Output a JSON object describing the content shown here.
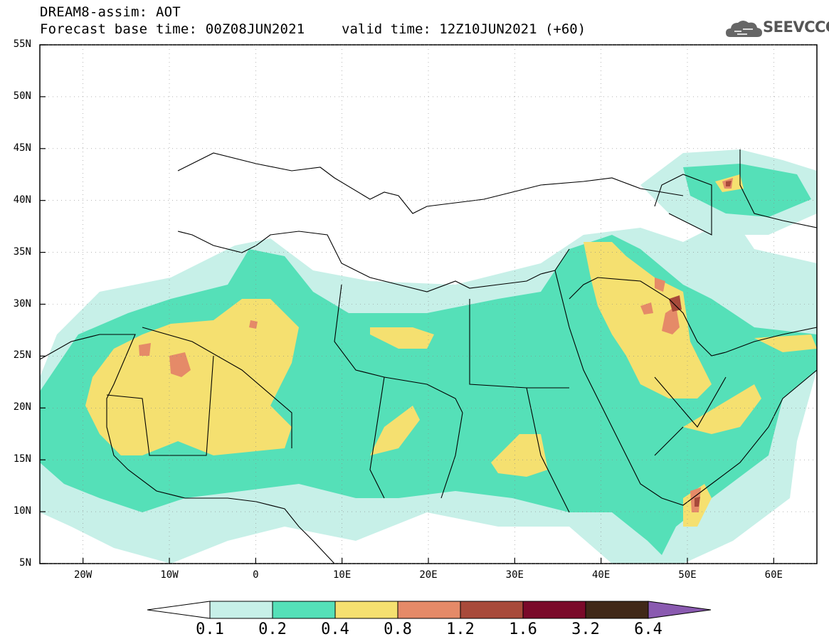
{
  "header": {
    "line1": "DREAM8-assim: AOT",
    "line2": "Forecast base time: 00Z08JUN2021",
    "valid": "valid time: 12Z10JUN2021 (+60)",
    "logo_text": "SEEVCCC"
  },
  "axes": {
    "lat_labels": [
      "55N",
      "50N",
      "45N",
      "40N",
      "35N",
      "30N",
      "25N",
      "20N",
      "15N",
      "10N",
      "5N"
    ],
    "lon_labels": [
      "20W",
      "10W",
      "0",
      "10E",
      "20E",
      "30E",
      "40E",
      "50E",
      "60E"
    ]
  },
  "colorbar": {
    "labels": [
      "0.1",
      "0.2",
      "0.4",
      "0.8",
      "1.2",
      "1.6",
      "3.2",
      "6.4"
    ],
    "colors": [
      "#ffffff",
      "#c7f0e8",
      "#55e0b8",
      "#f5e070",
      "#e58a68",
      "#a84a3a",
      "#7a0a2a",
      "#402818",
      "#8a5ab0"
    ]
  },
  "map": {
    "lon_range": [
      -25,
      65
    ],
    "lat_range": [
      5,
      55
    ]
  }
}
